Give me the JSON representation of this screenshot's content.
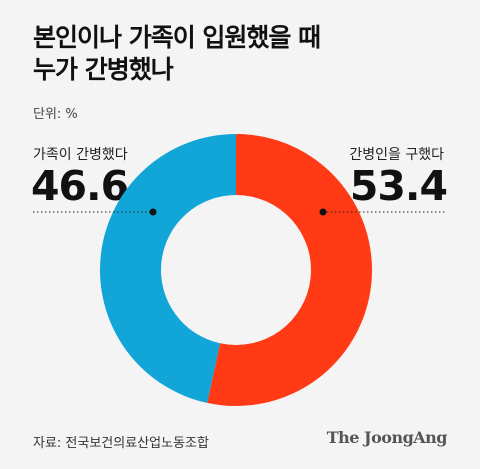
{
  "title_lines": [
    "본인이나 가족이 입원했을 때",
    "누가 간병했나"
  ],
  "unit": "단위: %",
  "source": "자료: 전국보건의료산업노동조합",
  "brand": "The JoongAng",
  "colors": {
    "hired": "#ff3a14",
    "family": "#12a6d8",
    "background": "#f4f4f4"
  },
  "chart_data": {
    "type": "pie",
    "style": "donut",
    "slices": [
      {
        "label": "간병인을 구했다",
        "value": 53.4,
        "value_text": "53.4",
        "color": "#ff3a14"
      },
      {
        "label": "가족이 간병했다",
        "value": 46.6,
        "value_text": "46.6",
        "color": "#12a6d8"
      }
    ]
  }
}
